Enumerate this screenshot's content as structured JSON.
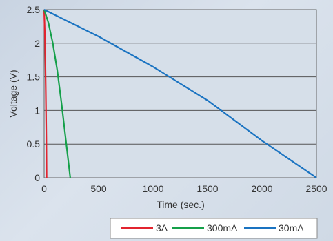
{
  "chart_data": {
    "type": "line",
    "xlabel": "Time (sec.)",
    "ylabel": "Voltage (V)",
    "xlim": [
      0,
      2500
    ],
    "ylim": [
      0,
      2.5
    ],
    "x_ticks": [
      "0",
      "500",
      "1000",
      "1500",
      "2000",
      "2500"
    ],
    "y_ticks": [
      "0",
      "0.5",
      "1",
      "1.5",
      "2",
      "2.5"
    ],
    "grid": "horizontal",
    "legend_position": "bottom-right",
    "series": [
      {
        "name": "3A",
        "color": "#e2242f",
        "points": [
          [
            0,
            2.5
          ],
          [
            8,
            2.05
          ],
          [
            15,
            1.3
          ],
          [
            20,
            0.6
          ],
          [
            23,
            0
          ]
        ]
      },
      {
        "name": "300mA",
        "color": "#15a04a",
        "points": [
          [
            0,
            2.5
          ],
          [
            40,
            2.3
          ],
          [
            80,
            2.0
          ],
          [
            120,
            1.6
          ],
          [
            160,
            1.1
          ],
          [
            200,
            0.55
          ],
          [
            240,
            0
          ]
        ]
      },
      {
        "name": "30mA",
        "color": "#1a73c1",
        "points": [
          [
            0,
            2.5
          ],
          [
            500,
            2.1
          ],
          [
            1000,
            1.65
          ],
          [
            1500,
            1.15
          ],
          [
            2000,
            0.55
          ],
          [
            2500,
            0
          ]
        ]
      }
    ]
  }
}
